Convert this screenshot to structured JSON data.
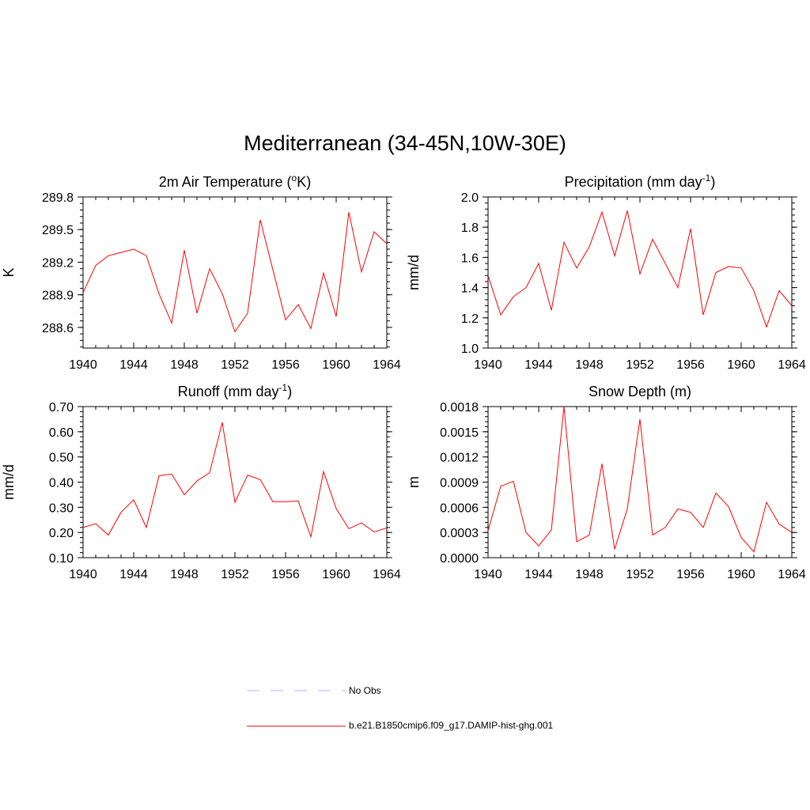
{
  "title": "Mediterranean (34-45N,10W-30E)",
  "chart_data": [
    {
      "type": "line",
      "title_main": "2m Air Temperature (",
      "title_sup": "o",
      "title_tail": "K)",
      "ylabel": "K",
      "xlim": [
        1940,
        1964
      ],
      "ylim": [
        288.41,
        289.8
      ],
      "xticks": [
        "1940",
        "1944",
        "1948",
        "1952",
        "1956",
        "1960",
        "1964"
      ],
      "yticks": [
        "288.6",
        "288.9",
        "289.2",
        "289.5",
        "289.8"
      ],
      "series": [
        {
          "name": "b.e21.B1850cmip6.f09_g17.DAMIP-hist-ghg.001",
          "x": [
            1940,
            1941,
            1942,
            1943,
            1944,
            1945,
            1946,
            1947,
            1948,
            1949,
            1950,
            1951,
            1952,
            1953,
            1954,
            1955,
            1956,
            1957,
            1958,
            1959,
            1960,
            1961,
            1962,
            1963,
            1964
          ],
          "y": [
            288.92,
            289.17,
            289.26,
            289.29,
            289.32,
            289.26,
            288.91,
            288.64,
            289.31,
            288.73,
            289.14,
            288.91,
            288.56,
            288.73,
            289.59,
            289.13,
            288.67,
            288.81,
            288.59,
            289.1,
            288.7,
            289.66,
            289.11,
            289.48,
            289.37
          ]
        }
      ]
    },
    {
      "type": "line",
      "title_main": "Precipitation (mm day",
      "title_sup": "-1",
      "title_tail": ")",
      "ylabel": "mm/d",
      "xlim": [
        1940,
        1964
      ],
      "ylim": [
        1.0,
        2.0
      ],
      "xticks": [
        "1940",
        "1944",
        "1948",
        "1952",
        "1956",
        "1960",
        "1964"
      ],
      "yticks": [
        "1.0",
        "1.2",
        "1.4",
        "1.6",
        "1.8",
        "2.0"
      ],
      "series": [
        {
          "name": "b.e21.B1850cmip6.f09_g17.DAMIP-hist-ghg.001",
          "x": [
            1940,
            1941,
            1942,
            1943,
            1944,
            1945,
            1946,
            1947,
            1948,
            1949,
            1950,
            1951,
            1952,
            1953,
            1954,
            1955,
            1956,
            1957,
            1958,
            1959,
            1960,
            1961,
            1962,
            1963,
            1964
          ],
          "y": [
            1.48,
            1.22,
            1.34,
            1.4,
            1.56,
            1.25,
            1.7,
            1.53,
            1.67,
            1.9,
            1.61,
            1.91,
            1.49,
            1.72,
            1.56,
            1.4,
            1.79,
            1.22,
            1.5,
            1.54,
            1.53,
            1.38,
            1.14,
            1.38,
            1.28
          ]
        }
      ]
    },
    {
      "type": "line",
      "title_main": "Runoff (mm day",
      "title_sup": "-1",
      "title_tail": ")",
      "ylabel": "mm/d",
      "xlim": [
        1940,
        1964
      ],
      "ylim": [
        0.1,
        0.7
      ],
      "xticks": [
        "1940",
        "1944",
        "1948",
        "1952",
        "1956",
        "1960",
        "1964"
      ],
      "yticks": [
        "0.10",
        "0.20",
        "0.30",
        "0.40",
        "0.50",
        "0.60",
        "0.70"
      ],
      "series": [
        {
          "name": "b.e21.B1850cmip6.f09_g17.DAMIP-hist-ghg.001",
          "x": [
            1940,
            1941,
            1942,
            1943,
            1944,
            1945,
            1946,
            1947,
            1948,
            1949,
            1950,
            1951,
            1952,
            1953,
            1954,
            1955,
            1956,
            1957,
            1958,
            1959,
            1960,
            1961,
            1962,
            1963,
            1964
          ],
          "y": [
            0.22,
            0.235,
            0.19,
            0.28,
            0.33,
            0.22,
            0.425,
            0.432,
            0.35,
            0.405,
            0.437,
            0.637,
            0.32,
            0.428,
            0.41,
            0.322,
            0.322,
            0.325,
            0.183,
            0.442,
            0.295,
            0.215,
            0.238,
            0.202,
            0.218
          ]
        }
      ]
    },
    {
      "type": "line",
      "title_main": "Snow Depth (m)",
      "title_sup": "",
      "title_tail": "",
      "ylabel": "m",
      "xlim": [
        1940,
        1964
      ],
      "ylim": [
        0.0,
        0.0018
      ],
      "xticks": [
        "1940",
        "1944",
        "1948",
        "1952",
        "1956",
        "1960",
        "1964"
      ],
      "yticks": [
        "0.0000",
        "0.0003",
        "0.0006",
        "0.0009",
        "0.0012",
        "0.0015",
        "0.0018"
      ],
      "series": [
        {
          "name": "b.e21.B1850cmip6.f09_g17.DAMIP-hist-ghg.001",
          "x": [
            1940,
            1941,
            1942,
            1943,
            1944,
            1945,
            1946,
            1947,
            1948,
            1949,
            1950,
            1951,
            1952,
            1953,
            1954,
            1955,
            1956,
            1957,
            1958,
            1959,
            1960,
            1961,
            1962,
            1963,
            1964
          ],
          "y": [
            0.00032,
            0.00085,
            0.00091,
            0.0003,
            0.00014,
            0.00033,
            0.0018,
            0.00019,
            0.00027,
            0.00112,
            0.0001,
            0.00058,
            0.00165,
            0.00027,
            0.00036,
            0.00058,
            0.00054,
            0.00036,
            0.00077,
            0.00061,
            0.00024,
            7e-05,
            0.00066,
            0.0004,
            0.0003
          ]
        }
      ]
    }
  ],
  "legend": {
    "items": [
      {
        "label": "No Obs",
        "color": "#b3b3ff",
        "style": "dashed"
      },
      {
        "label": "b.e21.B1850cmip6.f09_g17.DAMIP-hist-ghg.001",
        "color": "#ff0000",
        "style": "solid"
      }
    ]
  }
}
